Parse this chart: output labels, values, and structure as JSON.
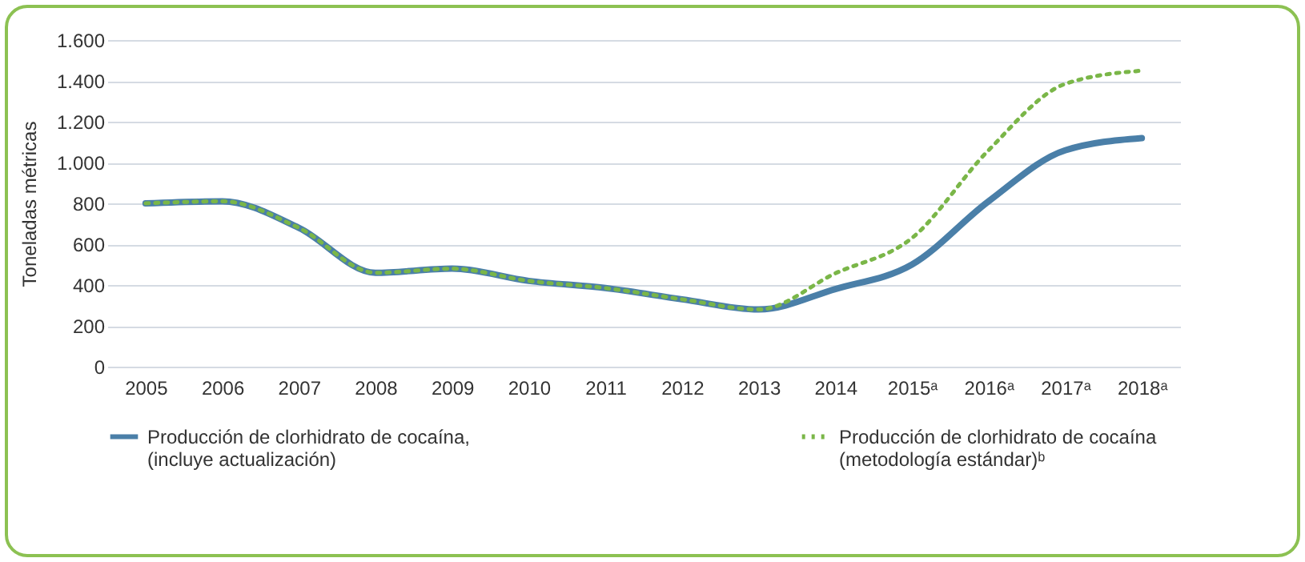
{
  "chart_data": {
    "type": "line",
    "ylabel": "Toneladas métricas",
    "categories": [
      "2005",
      "2006",
      "2007",
      "2008",
      "2009",
      "2010",
      "2011",
      "2012",
      "2013",
      "2014",
      "2015ᵃ",
      "2016ᵃ",
      "2017ᵃ",
      "2018ᵃ"
    ],
    "series": [
      {
        "name": "Producción de clorhidrato de cocaína, (incluye actualización)",
        "color": "#4a7fa8",
        "line_style": "solid",
        "values": [
          800,
          810,
          680,
          460,
          480,
          420,
          385,
          330,
          280,
          380,
          500,
          810,
          1060,
          1120
        ]
      },
      {
        "name": "Producción de clorhidrato de cocaína (metodología estándar)ᵇ",
        "color": "#7ab648",
        "line_style": "dotted",
        "values": [
          800,
          810,
          680,
          460,
          480,
          420,
          385,
          330,
          280,
          457,
          630,
          1060,
          1385,
          1450
        ]
      }
    ],
    "ylim": [
      0,
      1600
    ],
    "yticks": [
      {
        "value": 0,
        "label": "0"
      },
      {
        "value": 200,
        "label": "200"
      },
      {
        "value": 400,
        "label": "400"
      },
      {
        "value": 600,
        "label": "600"
      },
      {
        "value": 800,
        "label": "800"
      },
      {
        "value": 1000,
        "label": "1.000"
      },
      {
        "value": 1200,
        "label": "1.200"
      },
      {
        "value": 1400,
        "label": "1.400"
      },
      {
        "value": 1600,
        "label": "1.600"
      }
    ],
    "grid": "y",
    "legend": "bottom",
    "marker": "none"
  }
}
